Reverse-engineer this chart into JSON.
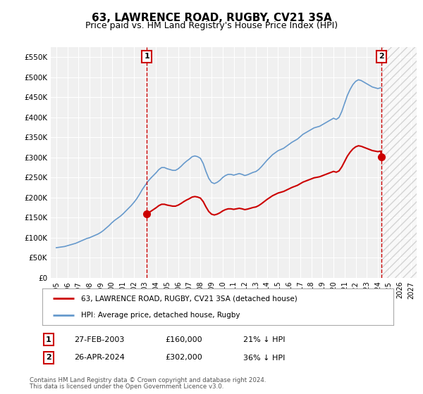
{
  "title": "63, LAWRENCE ROAD, RUGBY, CV21 3SA",
  "subtitle": "Price paid vs. HM Land Registry's House Price Index (HPI)",
  "title_fontsize": 11,
  "subtitle_fontsize": 9,
  "background_color": "#ffffff",
  "plot_bg_color": "#f0f0f0",
  "grid_color": "#ffffff",
  "legend_label_property": "63, LAWRENCE ROAD, RUGBY, CV21 3SA (detached house)",
  "legend_label_hpi": "HPI: Average price, detached house, Rugby",
  "property_color": "#cc0000",
  "hpi_color": "#6699cc",
  "annotation1_label": "1",
  "annotation1_date": "27-FEB-2003",
  "annotation1_price": "£160,000",
  "annotation1_note": "21% ↓ HPI",
  "annotation2_label": "2",
  "annotation2_date": "26-APR-2024",
  "annotation2_price": "£302,000",
  "annotation2_note": "36% ↓ HPI",
  "footer1": "Contains HM Land Registry data © Crown copyright and database right 2024.",
  "footer2": "This data is licensed under the Open Government Licence v3.0.",
  "ylim_min": 0,
  "ylim_max": 575000,
  "hpi_dates": [
    1995.0,
    1995.25,
    1995.5,
    1995.75,
    1996.0,
    1996.25,
    1996.5,
    1996.75,
    1997.0,
    1997.25,
    1997.5,
    1997.75,
    1998.0,
    1998.25,
    1998.5,
    1998.75,
    1999.0,
    1999.25,
    1999.5,
    1999.75,
    2000.0,
    2000.25,
    2000.5,
    2000.75,
    2001.0,
    2001.25,
    2001.5,
    2001.75,
    2002.0,
    2002.25,
    2002.5,
    2002.75,
    2003.0,
    2003.25,
    2003.5,
    2003.75,
    2004.0,
    2004.25,
    2004.5,
    2004.75,
    2005.0,
    2005.25,
    2005.5,
    2005.75,
    2006.0,
    2006.25,
    2006.5,
    2006.75,
    2007.0,
    2007.25,
    2007.5,
    2007.75,
    2008.0,
    2008.25,
    2008.5,
    2008.75,
    2009.0,
    2009.25,
    2009.5,
    2009.75,
    2010.0,
    2010.25,
    2010.5,
    2010.75,
    2011.0,
    2011.25,
    2011.5,
    2011.75,
    2012.0,
    2012.25,
    2012.5,
    2012.75,
    2013.0,
    2013.25,
    2013.5,
    2013.75,
    2014.0,
    2014.25,
    2014.5,
    2014.75,
    2015.0,
    2015.25,
    2015.5,
    2015.75,
    2016.0,
    2016.25,
    2016.5,
    2016.75,
    2017.0,
    2017.25,
    2017.5,
    2017.75,
    2018.0,
    2018.25,
    2018.5,
    2018.75,
    2019.0,
    2019.25,
    2019.5,
    2019.75,
    2020.0,
    2020.25,
    2020.5,
    2020.75,
    2021.0,
    2021.25,
    2021.5,
    2021.75,
    2022.0,
    2022.25,
    2022.5,
    2022.75,
    2023.0,
    2023.25,
    2023.5,
    2023.75,
    2024.0,
    2024.25
  ],
  "hpi_values": [
    75000,
    76000,
    77000,
    78000,
    80000,
    82000,
    84000,
    86000,
    89000,
    92000,
    95000,
    98000,
    100000,
    103000,
    106000,
    109000,
    113000,
    118000,
    124000,
    130000,
    137000,
    143000,
    148000,
    153000,
    159000,
    166000,
    173000,
    180000,
    188000,
    197000,
    208000,
    220000,
    230000,
    240000,
    248000,
    255000,
    262000,
    270000,
    275000,
    275000,
    272000,
    270000,
    268000,
    268000,
    272000,
    278000,
    285000,
    291000,
    296000,
    302000,
    304000,
    302000,
    298000,
    285000,
    265000,
    248000,
    238000,
    235000,
    238000,
    243000,
    250000,
    255000,
    258000,
    258000,
    256000,
    258000,
    260000,
    258000,
    255000,
    257000,
    260000,
    263000,
    265000,
    270000,
    277000,
    285000,
    293000,
    300000,
    307000,
    312000,
    317000,
    320000,
    323000,
    328000,
    333000,
    338000,
    342000,
    346000,
    352000,
    358000,
    362000,
    366000,
    370000,
    374000,
    376000,
    378000,
    382000,
    386000,
    390000,
    394000,
    398000,
    395000,
    400000,
    415000,
    435000,
    455000,
    470000,
    482000,
    490000,
    494000,
    492000,
    488000,
    484000,
    480000,
    476000,
    474000,
    472000,
    474000
  ],
  "property_dates": [
    2003.16,
    2024.32
  ],
  "property_values": [
    160000,
    302000
  ],
  "marker1_x": 2003.16,
  "marker1_y": 160000,
  "marker2_x": 2024.32,
  "marker2_y": 302000,
  "vline1_x": 2003.16,
  "vline2_x": 2024.32,
  "yticks": [
    0,
    50000,
    100000,
    150000,
    200000,
    250000,
    300000,
    350000,
    400000,
    450000,
    500000,
    550000
  ],
  "ytick_labels": [
    "£0",
    "£50K",
    "£100K",
    "£150K",
    "£200K",
    "£250K",
    "£300K",
    "£350K",
    "£400K",
    "£450K",
    "£500K",
    "£550K"
  ],
  "xtick_years": [
    1995,
    1996,
    1997,
    1998,
    1999,
    2000,
    2001,
    2002,
    2003,
    2004,
    2005,
    2006,
    2007,
    2008,
    2009,
    2010,
    2011,
    2012,
    2013,
    2014,
    2015,
    2016,
    2017,
    2018,
    2019,
    2020,
    2021,
    2022,
    2023,
    2024,
    2025,
    2026,
    2027
  ],
  "hatch_start_x": 2024.32,
  "hatch_end_x": 2027.5
}
